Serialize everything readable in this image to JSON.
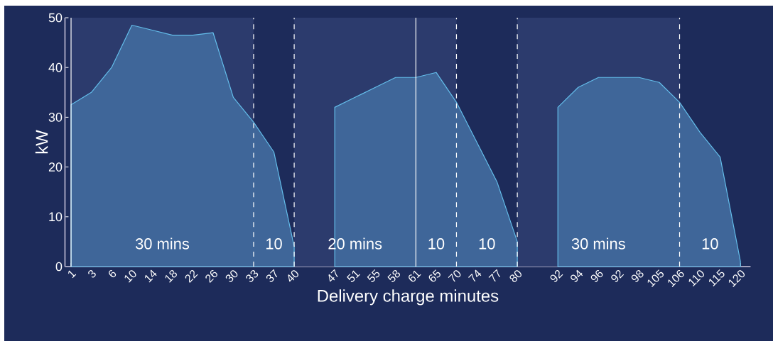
{
  "chart_data": {
    "type": "area",
    "xlabel": "Delivery charge minutes",
    "ylabel": "kW",
    "categories": [
      "1",
      "3",
      "6",
      "10",
      "14",
      "18",
      "22",
      "26",
      "30",
      "33",
      "37",
      "40",
      null,
      "47",
      "51",
      "55",
      "58",
      "61",
      "65",
      "70",
      "74",
      "77",
      "80",
      null,
      "92",
      "94",
      "96",
      "92",
      "98",
      "105",
      "106",
      "110",
      "115",
      "120"
    ],
    "series": [
      {
        "color": "#3f6699",
        "values": [
          32.5,
          35,
          40,
          48.5,
          47.5,
          46.5,
          46.5,
          47,
          34,
          29,
          23,
          4,
          null,
          null,
          null,
          null,
          null,
          null,
          null,
          null,
          null,
          null,
          null,
          null,
          null,
          null,
          null,
          null,
          null,
          null,
          null,
          null,
          null,
          null
        ]
      },
      {
        "color": "#3f6699",
        "values": [
          null,
          null,
          null,
          null,
          null,
          null,
          null,
          null,
          null,
          null,
          null,
          null,
          null,
          32,
          34,
          36,
          38,
          38,
          39,
          33,
          25,
          17,
          5,
          null,
          null,
          null,
          null,
          null,
          null,
          null,
          null,
          null,
          null,
          null
        ]
      },
      {
        "color": "#3f6699",
        "values": [
          null,
          null,
          null,
          null,
          null,
          null,
          null,
          null,
          null,
          null,
          null,
          null,
          null,
          null,
          null,
          null,
          null,
          null,
          null,
          null,
          null,
          null,
          null,
          null,
          32,
          36,
          38,
          38,
          38,
          37,
          33,
          27,
          22,
          1
        ]
      }
    ],
    "ylim": [
      0,
      50
    ],
    "yticks": [
      0,
      10,
      20,
      30,
      40,
      50
    ],
    "grid": false,
    "bands": [
      {
        "axis": "x",
        "from": "1",
        "to": "33",
        "color": "#2c3b6d"
      },
      {
        "axis": "x",
        "from": "40",
        "to": "70",
        "color": "#2c3b6d"
      },
      {
        "axis": "x",
        "from": "80",
        "to": "106",
        "color": "#2c3b6d"
      }
    ],
    "ref_lines": [
      {
        "axis": "x",
        "value": "1",
        "line_style": "solid"
      },
      {
        "axis": "x",
        "value": "33",
        "line_style": "dashed"
      },
      {
        "axis": "x",
        "value": "40",
        "line_style": "dashed"
      },
      {
        "axis": "x",
        "value": "61",
        "line_style": "solid"
      },
      {
        "axis": "x",
        "value": "70",
        "line_style": "dashed"
      },
      {
        "axis": "x",
        "value": "80",
        "line_style": "dashed"
      },
      {
        "axis": "x",
        "value": "106",
        "line_style": "dashed"
      }
    ],
    "annotations": [
      "30 mins",
      "10",
      "20 mins",
      "10",
      "10",
      "30 mins",
      "10"
    ]
  }
}
